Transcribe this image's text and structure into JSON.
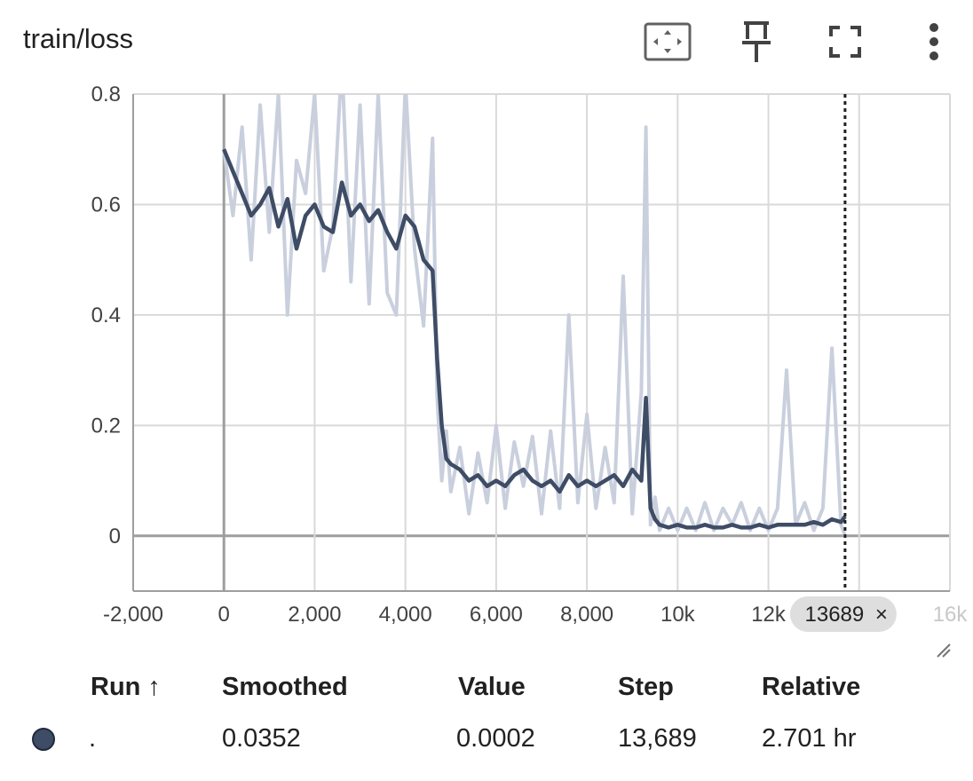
{
  "title": "train/loss",
  "toolbar": {
    "fit_icon": "fit-domain-icon",
    "pin_icon": "pin-icon",
    "fullscreen_icon": "fullscreen-icon",
    "menu_icon": "more-vert-icon"
  },
  "colors": {
    "series": "#3e4c66",
    "raw": "#c9cfdd",
    "grid": "#d9d9d9",
    "axis": "#9e9e9e",
    "chip": "#dedede"
  },
  "chart_data": {
    "type": "line",
    "title": "train/loss",
    "xlabel": "",
    "ylabel": "",
    "xlim": [
      -2000,
      16000
    ],
    "ylim": [
      -0.1,
      0.8
    ],
    "x_ticks": [
      {
        "v": -2000,
        "label": "-2,000"
      },
      {
        "v": 0,
        "label": "0"
      },
      {
        "v": 2000,
        "label": "2,000"
      },
      {
        "v": 4000,
        "label": "4,000"
      },
      {
        "v": 6000,
        "label": "6,000"
      },
      {
        "v": 8000,
        "label": "8,000"
      },
      {
        "v": 10000,
        "label": "10k"
      },
      {
        "v": 12000,
        "label": "12k"
      },
      {
        "v": 14000,
        "label": "14k"
      },
      {
        "v": 16000,
        "label": "16k"
      }
    ],
    "y_ticks": [
      {
        "v": 0,
        "label": "0"
      },
      {
        "v": 0.2,
        "label": "0.2"
      },
      {
        "v": 0.4,
        "label": "0.4"
      },
      {
        "v": 0.6,
        "label": "0.6"
      },
      {
        "v": 0.8,
        "label": "0.8"
      }
    ],
    "grid": true,
    "cursor": {
      "step": 13689,
      "label": "13689"
    },
    "series": [
      {
        "name": ".",
        "x": [
          0,
          200,
          400,
          600,
          800,
          1000,
          1200,
          1400,
          1600,
          1800,
          2000,
          2200,
          2400,
          2600,
          2800,
          3000,
          3200,
          3400,
          3600,
          3800,
          4000,
          4200,
          4400,
          4600,
          4700,
          4800,
          4900,
          5000,
          5200,
          5400,
          5600,
          5800,
          6000,
          6200,
          6400,
          6600,
          6800,
          7000,
          7200,
          7400,
          7600,
          7800,
          8000,
          8200,
          8400,
          8600,
          8800,
          9000,
          9200,
          9300,
          9400,
          9500,
          9600,
          9800,
          10000,
          10200,
          10400,
          10600,
          10800,
          11000,
          11200,
          11400,
          11600,
          11800,
          12000,
          12200,
          12400,
          12600,
          12800,
          13000,
          13200,
          13400,
          13600,
          13689
        ],
        "smoothed": [
          0.7,
          0.66,
          0.62,
          0.58,
          0.6,
          0.63,
          0.56,
          0.61,
          0.52,
          0.58,
          0.6,
          0.56,
          0.55,
          0.64,
          0.58,
          0.6,
          0.57,
          0.59,
          0.55,
          0.52,
          0.58,
          0.56,
          0.5,
          0.48,
          0.32,
          0.2,
          0.14,
          0.13,
          0.12,
          0.1,
          0.11,
          0.09,
          0.1,
          0.09,
          0.11,
          0.12,
          0.1,
          0.09,
          0.1,
          0.08,
          0.11,
          0.09,
          0.1,
          0.09,
          0.1,
          0.11,
          0.09,
          0.12,
          0.1,
          0.25,
          0.05,
          0.03,
          0.02,
          0.015,
          0.02,
          0.015,
          0.015,
          0.02,
          0.015,
          0.015,
          0.02,
          0.015,
          0.015,
          0.02,
          0.015,
          0.02,
          0.02,
          0.02,
          0.02,
          0.025,
          0.02,
          0.03,
          0.025,
          0.0352
        ],
        "raw": [
          0.7,
          0.58,
          0.74,
          0.5,
          0.78,
          0.55,
          0.8,
          0.4,
          0.68,
          0.62,
          0.8,
          0.48,
          0.56,
          0.86,
          0.46,
          0.78,
          0.42,
          0.8,
          0.44,
          0.4,
          0.82,
          0.52,
          0.38,
          0.72,
          0.25,
          0.1,
          0.19,
          0.08,
          0.16,
          0.04,
          0.15,
          0.06,
          0.2,
          0.05,
          0.17,
          0.09,
          0.18,
          0.04,
          0.19,
          0.05,
          0.4,
          0.06,
          0.22,
          0.05,
          0.16,
          0.06,
          0.47,
          0.04,
          0.26,
          0.74,
          0.02,
          0.07,
          0.01,
          0.05,
          0.01,
          0.05,
          0.01,
          0.06,
          0.01,
          0.05,
          0.02,
          0.06,
          0.01,
          0.05,
          0.01,
          0.05,
          0.3,
          0.02,
          0.06,
          0.01,
          0.05,
          0.34,
          0.02,
          0.0002
        ]
      }
    ]
  },
  "table": {
    "headers": {
      "run": "Run ↑",
      "smoothed": "Smoothed",
      "value": "Value",
      "step": "Step",
      "relative": "Relative"
    },
    "rows": [
      {
        "run": ".",
        "smoothed": "0.0352",
        "value": "0.0002",
        "step": "13,689",
        "relative": "2.701 hr",
        "color": "#3e4c66"
      }
    ]
  }
}
